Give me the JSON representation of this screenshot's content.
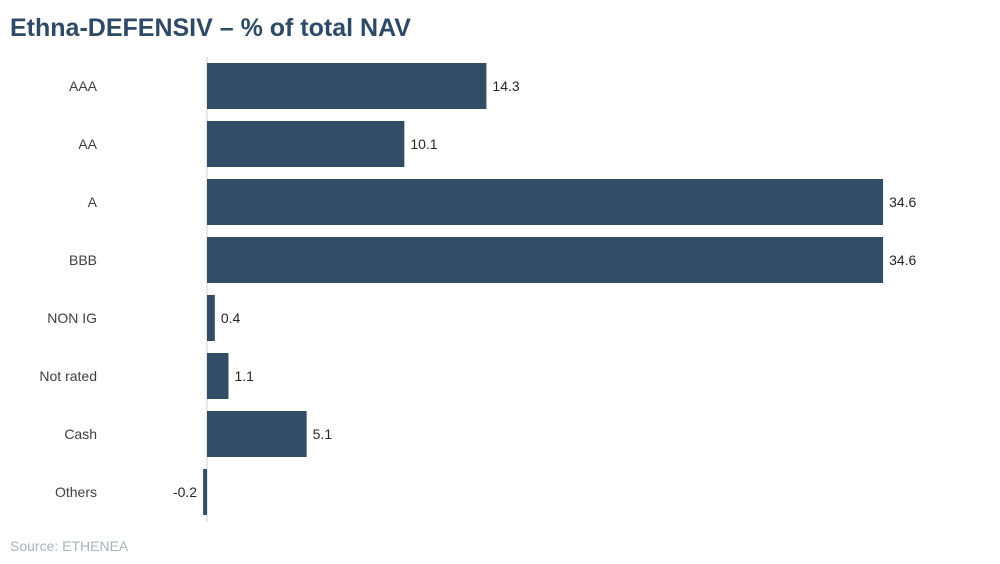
{
  "title": "Ethna-DEFENSIV – % of total NAV",
  "source": "Source: ETHENEA",
  "colors": {
    "bar": "#344d66",
    "axis": "#d0d0d0",
    "title": "#2f4a66"
  },
  "chart_data": {
    "type": "bar",
    "orientation": "horizontal",
    "title": "Ethna-DEFENSIV – % of total NAV",
    "categories": [
      "AAA",
      "AA",
      "A",
      "BBB",
      "NON IG",
      "Not rated",
      "Cash",
      "Others"
    ],
    "values": [
      14.3,
      10.1,
      34.6,
      34.6,
      0.4,
      1.1,
      5.1,
      -0.2
    ],
    "value_labels": [
      "14.3",
      "10.1",
      "34.6",
      "34.6",
      "0.4",
      "1.1",
      "5.1",
      "-0.2"
    ],
    "xlabel": "",
    "ylabel": "",
    "xlim": [
      -0.2,
      34.6
    ],
    "grid": false,
    "legend": "none"
  }
}
